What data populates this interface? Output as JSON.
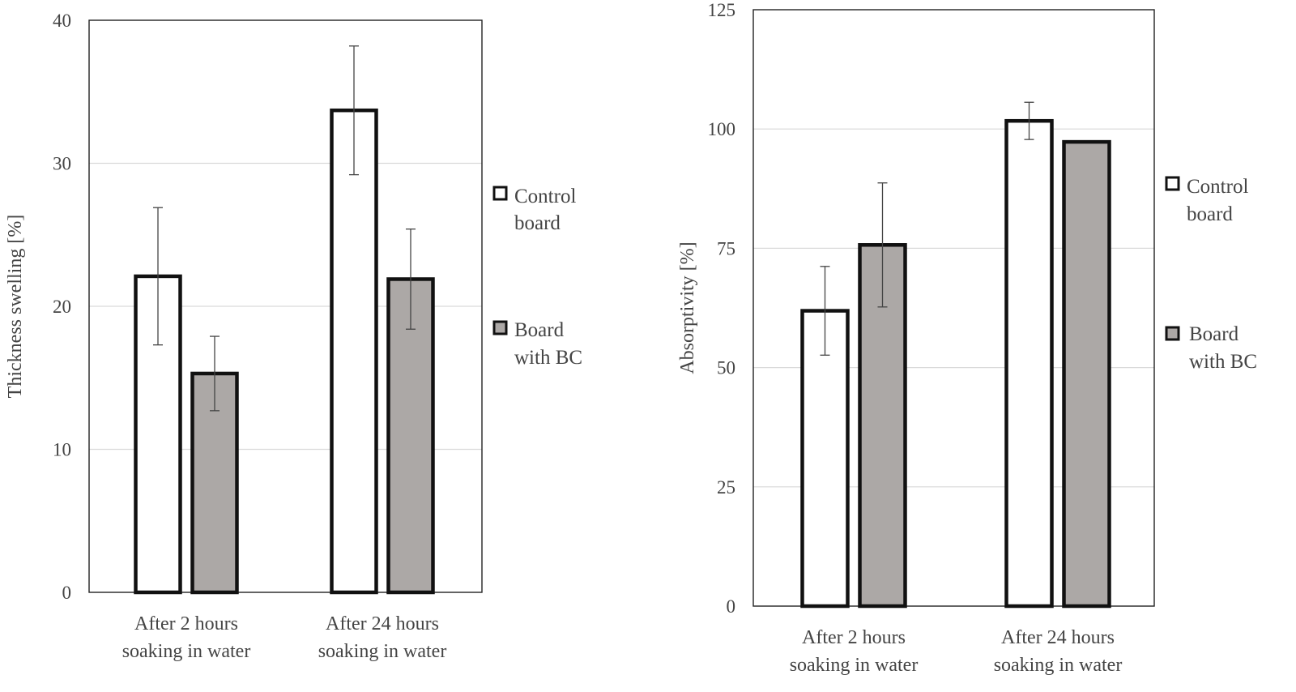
{
  "chart_data": [
    {
      "type": "bar",
      "categories": [
        [
          "After 2 hours",
          "soaking in water"
        ],
        [
          "After 24 hours",
          "soaking in water"
        ]
      ],
      "ylabel": "Thickness swelling [%]",
      "ylim": [
        0,
        40
      ],
      "yticks": [
        "0",
        "10",
        "20",
        "30",
        "40"
      ],
      "grid": true,
      "legend_position": "right",
      "series": [
        {
          "name": [
            "Control",
            "board"
          ],
          "color": "#ffffff",
          "values": [
            22.1,
            33.7
          ],
          "errors": [
            4.8,
            4.5
          ]
        },
        {
          "name": [
            "Board",
            "with BC"
          ],
          "color": "#aca8a6",
          "values": [
            15.3,
            21.9
          ],
          "errors": [
            2.6,
            3.5
          ]
        }
      ]
    },
    {
      "type": "bar",
      "categories": [
        [
          "After 2 hours",
          "soaking in water"
        ],
        [
          "After 24 hours",
          "soaking in water"
        ]
      ],
      "ylabel": "Absorptivity [%]",
      "ylim": [
        0,
        125
      ],
      "yticks": [
        "0",
        "25",
        "50",
        "75",
        "100",
        "125"
      ],
      "grid": true,
      "legend_position": "right",
      "series": [
        {
          "name": [
            "Control",
            "board"
          ],
          "color": "#ffffff",
          "values": [
            61.9,
            101.7
          ],
          "errors": [
            9.3,
            3.9
          ]
        },
        {
          "name": [
            "Board",
            "with BC"
          ],
          "color": "#aca8a6",
          "values": [
            75.7,
            97.3
          ],
          "errors": [
            13.0,
            null
          ]
        }
      ]
    }
  ]
}
